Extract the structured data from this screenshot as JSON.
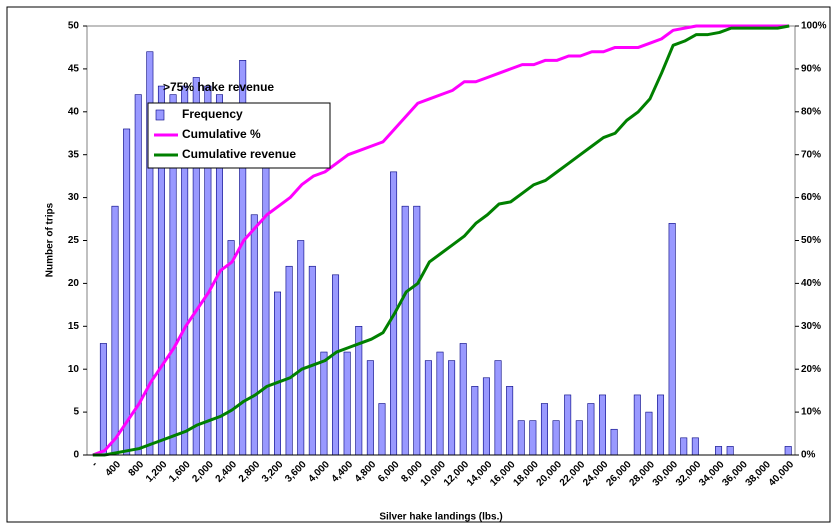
{
  "chart_data": {
    "type": "bar",
    "annotation": ">75% hake revenue",
    "x_label": "Silver hake landings (lbs.)",
    "y_label": "Number of trips",
    "categories": [
      "-",
      null,
      "400",
      null,
      "800",
      null,
      "1,200",
      null,
      "1,600",
      null,
      "2,000",
      null,
      "2,400",
      null,
      "2,800",
      null,
      "3,200",
      null,
      "3,600",
      null,
      "4,000",
      null,
      "4,400",
      null,
      "4,800",
      null,
      "6,000",
      null,
      "8,000",
      null,
      "10,000",
      null,
      "12,000",
      null,
      "14,000",
      null,
      "16,000",
      null,
      "18,000",
      null,
      "20,000",
      null,
      "22,000",
      null,
      "24,000",
      null,
      "26,000",
      null,
      "28,000",
      null,
      "30,000",
      null,
      "32,000",
      null,
      "34,000",
      null,
      "36,000",
      null,
      "38,000",
      null,
      "40,000"
    ],
    "series": [
      {
        "name": "Frequency",
        "color": "#9999ff",
        "values": [
          0,
          13,
          29,
          38,
          42,
          47,
          43,
          42,
          43,
          44,
          43,
          42,
          25,
          46,
          28,
          36,
          19,
          22,
          25,
          22,
          12,
          21,
          12,
          15,
          11,
          6,
          33,
          29,
          29,
          11,
          12,
          11,
          13,
          8,
          9,
          11,
          8,
          4,
          4,
          6,
          4,
          7,
          4,
          6,
          7,
          3,
          0,
          7,
          5,
          7,
          27,
          2,
          2,
          0,
          1,
          1,
          0,
          0,
          0,
          0,
          1
        ]
      },
      {
        "name": "Cumulative %",
        "color": "#ff00ff",
        "axis": "y2",
        "type": "line",
        "values": [
          0,
          1,
          4,
          8,
          12,
          17,
          21,
          25,
          30,
          34,
          38,
          43,
          45,
          50,
          53,
          56,
          58,
          60,
          63,
          65,
          66,
          68,
          70,
          71,
          72,
          73,
          76,
          79,
          82,
          83,
          84,
          85,
          87,
          87,
          88,
          89,
          90,
          91,
          91,
          92,
          92,
          93,
          93,
          94,
          94,
          95,
          95,
          95,
          96,
          97,
          99,
          99.5,
          100,
          100,
          100,
          100,
          100,
          100,
          100,
          100,
          100
        ]
      },
      {
        "name": "Cumulative revenue",
        "color": "#008000",
        "axis": "y2",
        "type": "line",
        "values": [
          0,
          0,
          0.5,
          1,
          1.5,
          2.5,
          3.5,
          4.5,
          5.5,
          7,
          8,
          9,
          10.5,
          12.5,
          14,
          16,
          17,
          18,
          20,
          21,
          22,
          24,
          25,
          26,
          27,
          28.5,
          33,
          38,
          40,
          45,
          47,
          49,
          51,
          54,
          56,
          58.5,
          59,
          61,
          63,
          64,
          66,
          68,
          70,
          72,
          74,
          75,
          78,
          80,
          83,
          89,
          95.5,
          96.5,
          98,
          98,
          98.5,
          99.5,
          99.5,
          99.5,
          99.5,
          99.5,
          100
        ]
      }
    ],
    "ylim": [
      0,
      50
    ],
    "yticks": [
      0,
      5,
      10,
      15,
      20,
      25,
      30,
      35,
      40,
      45,
      50
    ],
    "y2lim": [
      0,
      100
    ],
    "y2ticks": [
      {
        "value": 0,
        "label": "0%"
      },
      {
        "value": 10,
        "label": "10%"
      },
      {
        "value": 20,
        "label": "20%"
      },
      {
        "value": 30,
        "label": "30%"
      },
      {
        "value": 40,
        "label": "40%"
      },
      {
        "value": 50,
        "label": "50%"
      },
      {
        "value": 60,
        "label": "60%"
      },
      {
        "value": 70,
        "label": "70%"
      },
      {
        "value": 80,
        "label": "80%"
      },
      {
        "value": 90,
        "label": "90%"
      },
      {
        "value": 100,
        "label": "100%"
      }
    ],
    "grid": false,
    "legend": "upper left"
  }
}
